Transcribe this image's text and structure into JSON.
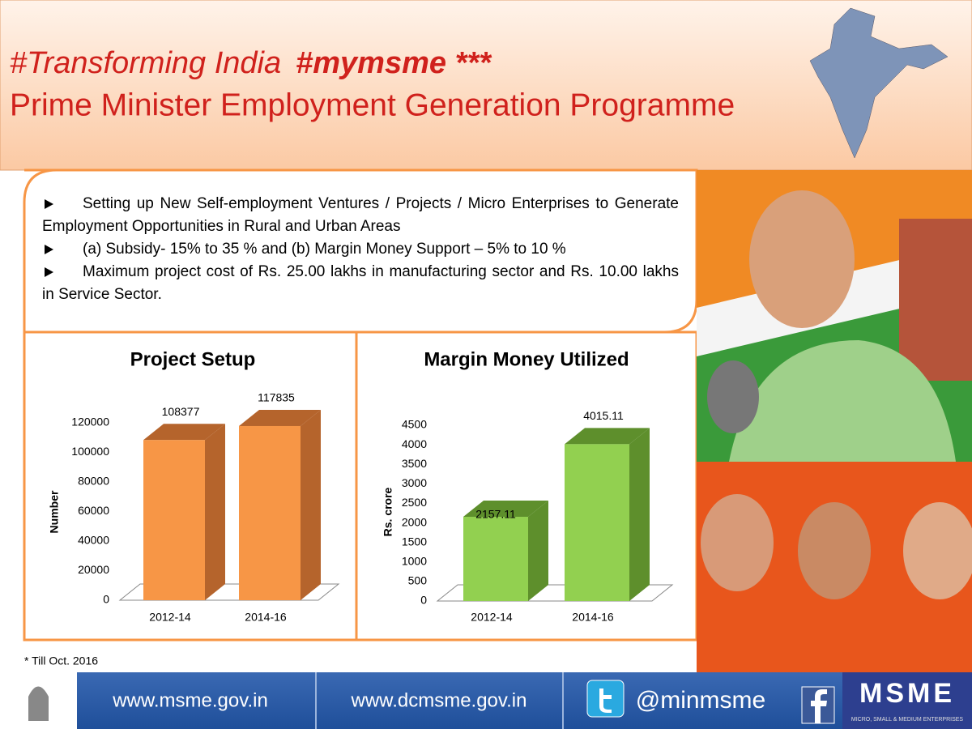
{
  "header": {
    "tag1": "#Transforming India",
    "tag2": "#mymsme ***",
    "title": "Prime Minister Employment Generation Programme"
  },
  "bullets": [
    "Setting up  New Self-employment  Ventures / Projects / Micro  Enterprises  to Generate Employment  Opportunities  in  Rural  and Urban  Areas",
    "(a) Subsidy- 15% to 35 %  and (b) Margin Money Support – 5% to 10 %",
    "Maximum  project  cost  of  Rs.  25.00  lakhs  in  manufacturing  sector  and  Rs. 10.00 lakhs in Service Sector."
  ],
  "chart_data": [
    {
      "type": "bar3d",
      "title": "Project Setup",
      "y_label": "Number",
      "categories": [
        "2012-14",
        "2014-16"
      ],
      "values": [
        108377,
        117835
      ],
      "color": "#f79646",
      "side_color": "#b5642c",
      "ylim": [
        0,
        120000
      ],
      "yticks": [
        0,
        20000,
        40000,
        60000,
        80000,
        100000,
        120000
      ]
    },
    {
      "type": "bar3d",
      "title": "Margin Money Utilized",
      "y_label": "Rs. crore",
      "categories": [
        "2012-14",
        "2014-16"
      ],
      "values": [
        2157.11,
        4015.11
      ],
      "color": "#92d050",
      "side_color": "#5e8f2c",
      "ylim": [
        0,
        4500
      ],
      "yticks": [
        0,
        500,
        1000,
        1500,
        2000,
        2500,
        3000,
        3500,
        4000,
        4500
      ]
    }
  ],
  "footnote": "* Till Oct. 2016",
  "footer": {
    "site1": "www.msme.gov.in",
    "site2": "www.dcmsme.gov.in",
    "twitter": "@minmsme",
    "logo": "MSME",
    "logo_subtitle": "MICRO, SMALL & MEDIUM ENTERPRISES"
  }
}
